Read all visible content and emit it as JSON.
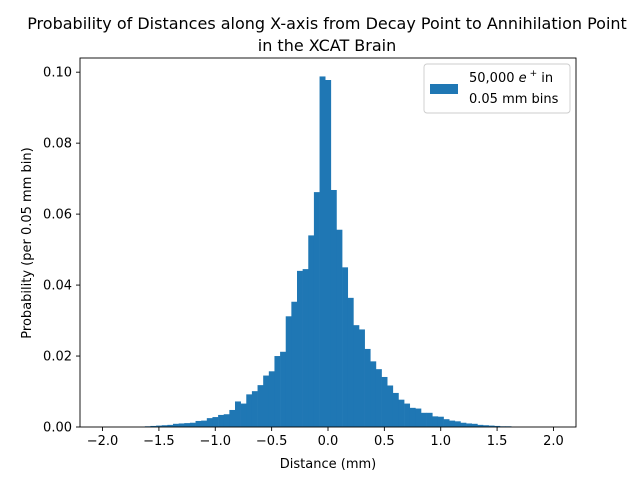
{
  "chart_data": {
    "type": "bar",
    "title_line1": "Probability of Distances along X-axis from Decay Point to Annihilation Point",
    "title_line2": "in the XCAT Brain",
    "xlabel": "Distance (mm)",
    "ylabel": "Probability (per 0.05 mm bin)",
    "xlim": [
      -2.2,
      2.2
    ],
    "ylim": [
      0.0,
      0.104
    ],
    "xticks": [
      "-2.0",
      "-1.5",
      "-1.0",
      "-0.5",
      "0.0",
      "0.5",
      "1.0",
      "1.5",
      "2.0"
    ],
    "xtick_values": [
      -2.0,
      -1.5,
      -1.0,
      -0.5,
      0.0,
      0.5,
      1.0,
      1.5,
      2.0
    ],
    "yticks": [
      "0.00",
      "0.02",
      "0.04",
      "0.06",
      "0.08",
      "0.10"
    ],
    "ytick_values": [
      0.0,
      0.02,
      0.04,
      0.06,
      0.08,
      0.1
    ],
    "bin_width": 0.05,
    "color": "#1f77b4",
    "legend": {
      "position": "upper right",
      "label_line1_prefix": "50,000 ",
      "label_line1_symbol": "e",
      "label_line1_sup": "+",
      "label_line1_suffix": " in",
      "label_line2": "0.05 mm bins"
    },
    "bins": [
      {
        "x": -1.6,
        "y": 0.0002
      },
      {
        "x": -1.55,
        "y": 0.0003
      },
      {
        "x": -1.5,
        "y": 0.0004
      },
      {
        "x": -1.45,
        "y": 0.0005
      },
      {
        "x": -1.4,
        "y": 0.0006
      },
      {
        "x": -1.35,
        "y": 0.0009
      },
      {
        "x": -1.3,
        "y": 0.001
      },
      {
        "x": -1.25,
        "y": 0.0011
      },
      {
        "x": -1.2,
        "y": 0.0012
      },
      {
        "x": -1.15,
        "y": 0.0017
      },
      {
        "x": -1.1,
        "y": 0.0018
      },
      {
        "x": -1.05,
        "y": 0.0025
      },
      {
        "x": -1.0,
        "y": 0.0028
      },
      {
        "x": -0.95,
        "y": 0.0034
      },
      {
        "x": -0.9,
        "y": 0.0036
      },
      {
        "x": -0.85,
        "y": 0.0048
      },
      {
        "x": -0.8,
        "y": 0.0072
      },
      {
        "x": -0.75,
        "y": 0.0066
      },
      {
        "x": -0.7,
        "y": 0.0092
      },
      {
        "x": -0.65,
        "y": 0.0101
      },
      {
        "x": -0.6,
        "y": 0.0118
      },
      {
        "x": -0.55,
        "y": 0.0145
      },
      {
        "x": -0.5,
        "y": 0.0157
      },
      {
        "x": -0.45,
        "y": 0.02
      },
      {
        "x": -0.4,
        "y": 0.0212
      },
      {
        "x": -0.35,
        "y": 0.0312
      },
      {
        "x": -0.3,
        "y": 0.0353
      },
      {
        "x": -0.25,
        "y": 0.044
      },
      {
        "x": -0.2,
        "y": 0.0445
      },
      {
        "x": -0.15,
        "y": 0.054
      },
      {
        "x": -0.1,
        "y": 0.0662
      },
      {
        "x": -0.05,
        "y": 0.0988
      },
      {
        "x": 0.0,
        "y": 0.0978
      },
      {
        "x": 0.05,
        "y": 0.0668
      },
      {
        "x": 0.1,
        "y": 0.0556
      },
      {
        "x": 0.15,
        "y": 0.045
      },
      {
        "x": 0.2,
        "y": 0.0364
      },
      {
        "x": 0.25,
        "y": 0.0287
      },
      {
        "x": 0.3,
        "y": 0.0275
      },
      {
        "x": 0.35,
        "y": 0.022
      },
      {
        "x": 0.4,
        "y": 0.0185
      },
      {
        "x": 0.45,
        "y": 0.0163
      },
      {
        "x": 0.5,
        "y": 0.0141
      },
      {
        "x": 0.55,
        "y": 0.0117
      },
      {
        "x": 0.6,
        "y": 0.0096
      },
      {
        "x": 0.65,
        "y": 0.0077
      },
      {
        "x": 0.7,
        "y": 0.0066
      },
      {
        "x": 0.75,
        "y": 0.0054
      },
      {
        "x": 0.8,
        "y": 0.0052
      },
      {
        "x": 0.85,
        "y": 0.004
      },
      {
        "x": 0.9,
        "y": 0.004
      },
      {
        "x": 0.95,
        "y": 0.003
      },
      {
        "x": 1.0,
        "y": 0.0029
      },
      {
        "x": 1.05,
        "y": 0.0022
      },
      {
        "x": 1.1,
        "y": 0.0018
      },
      {
        "x": 1.15,
        "y": 0.0016
      },
      {
        "x": 1.2,
        "y": 0.0012
      },
      {
        "x": 1.25,
        "y": 0.001
      },
      {
        "x": 1.3,
        "y": 0.0009
      },
      {
        "x": 1.35,
        "y": 0.0006
      },
      {
        "x": 1.4,
        "y": 0.0005
      },
      {
        "x": 1.45,
        "y": 0.0004
      },
      {
        "x": 1.5,
        "y": 0.0003
      },
      {
        "x": 1.55,
        "y": 0.0002
      },
      {
        "x": 1.6,
        "y": 0.0002
      }
    ]
  }
}
